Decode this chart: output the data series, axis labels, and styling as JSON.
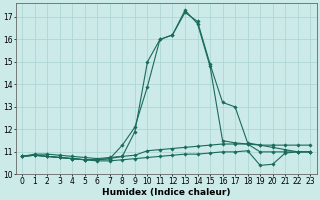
{
  "title": "",
  "xlabel": "Humidex (Indice chaleur)",
  "background_color": "#cceae8",
  "grid_color": "#aad4d0",
  "line_color": "#1a6b5a",
  "xlim": [
    -0.5,
    23.5
  ],
  "ylim": [
    10.0,
    17.6
  ],
  "yticks": [
    10,
    11,
    12,
    13,
    14,
    15,
    16,
    17
  ],
  "xticks": [
    0,
    1,
    2,
    3,
    4,
    5,
    6,
    7,
    8,
    9,
    10,
    11,
    12,
    13,
    14,
    15,
    16,
    17,
    18,
    19,
    20,
    21,
    22,
    23
  ],
  "series": [
    {
      "x": [
        0,
        1,
        2,
        3,
        4,
        5,
        6,
        7,
        8,
        9,
        10,
        11,
        12,
        13,
        14,
        15,
        16,
        17,
        18,
        19,
        20,
        21,
        22,
        23
      ],
      "y": [
        10.8,
        10.9,
        10.9,
        10.85,
        10.8,
        10.75,
        10.7,
        10.75,
        10.8,
        10.85,
        11.05,
        11.1,
        11.15,
        11.2,
        11.25,
        11.3,
        11.35,
        11.35,
        11.35,
        11.3,
        11.2,
        11.1,
        11.0,
        11.0
      ]
    },
    {
      "x": [
        0,
        1,
        2,
        3,
        4,
        5,
        6,
        7,
        8,
        9,
        10,
        11,
        12,
        13,
        14,
        15,
        16,
        17,
        18,
        19,
        20,
        21,
        22,
        23
      ],
      "y": [
        10.8,
        10.85,
        10.8,
        10.75,
        10.7,
        10.65,
        10.6,
        10.6,
        10.65,
        10.7,
        10.75,
        10.8,
        10.85,
        10.9,
        10.9,
        10.95,
        11.0,
        11.0,
        11.05,
        10.4,
        10.45,
        10.95,
        11.0,
        11.0
      ]
    },
    {
      "x": [
        0,
        1,
        2,
        3,
        4,
        5,
        6,
        7,
        8,
        9,
        10,
        11,
        12,
        13,
        14,
        15,
        16,
        17,
        18,
        19,
        20,
        21,
        22,
        23
      ],
      "y": [
        10.8,
        10.85,
        10.8,
        10.75,
        10.7,
        10.65,
        10.65,
        10.7,
        11.3,
        12.1,
        13.9,
        16.0,
        16.2,
        17.2,
        16.8,
        14.9,
        13.2,
        13.0,
        11.4,
        11.3,
        11.3,
        11.3,
        11.3,
        11.3
      ]
    },
    {
      "x": [
        0,
        1,
        2,
        3,
        4,
        5,
        6,
        7,
        8,
        9,
        10,
        11,
        12,
        13,
        14,
        15,
        16,
        17,
        18,
        19,
        20,
        21,
        22,
        23
      ],
      "y": [
        10.8,
        10.85,
        10.8,
        10.75,
        10.7,
        10.65,
        10.65,
        10.7,
        10.8,
        11.9,
        15.0,
        16.0,
        16.2,
        17.3,
        16.7,
        14.8,
        11.5,
        11.4,
        11.35,
        11.0,
        11.0,
        11.0,
        11.0,
        11.0
      ]
    }
  ],
  "marker": "D",
  "markersize": 1.8,
  "linewidth": 0.8,
  "xlabel_fontsize": 6.5,
  "tick_fontsize": 5.5
}
